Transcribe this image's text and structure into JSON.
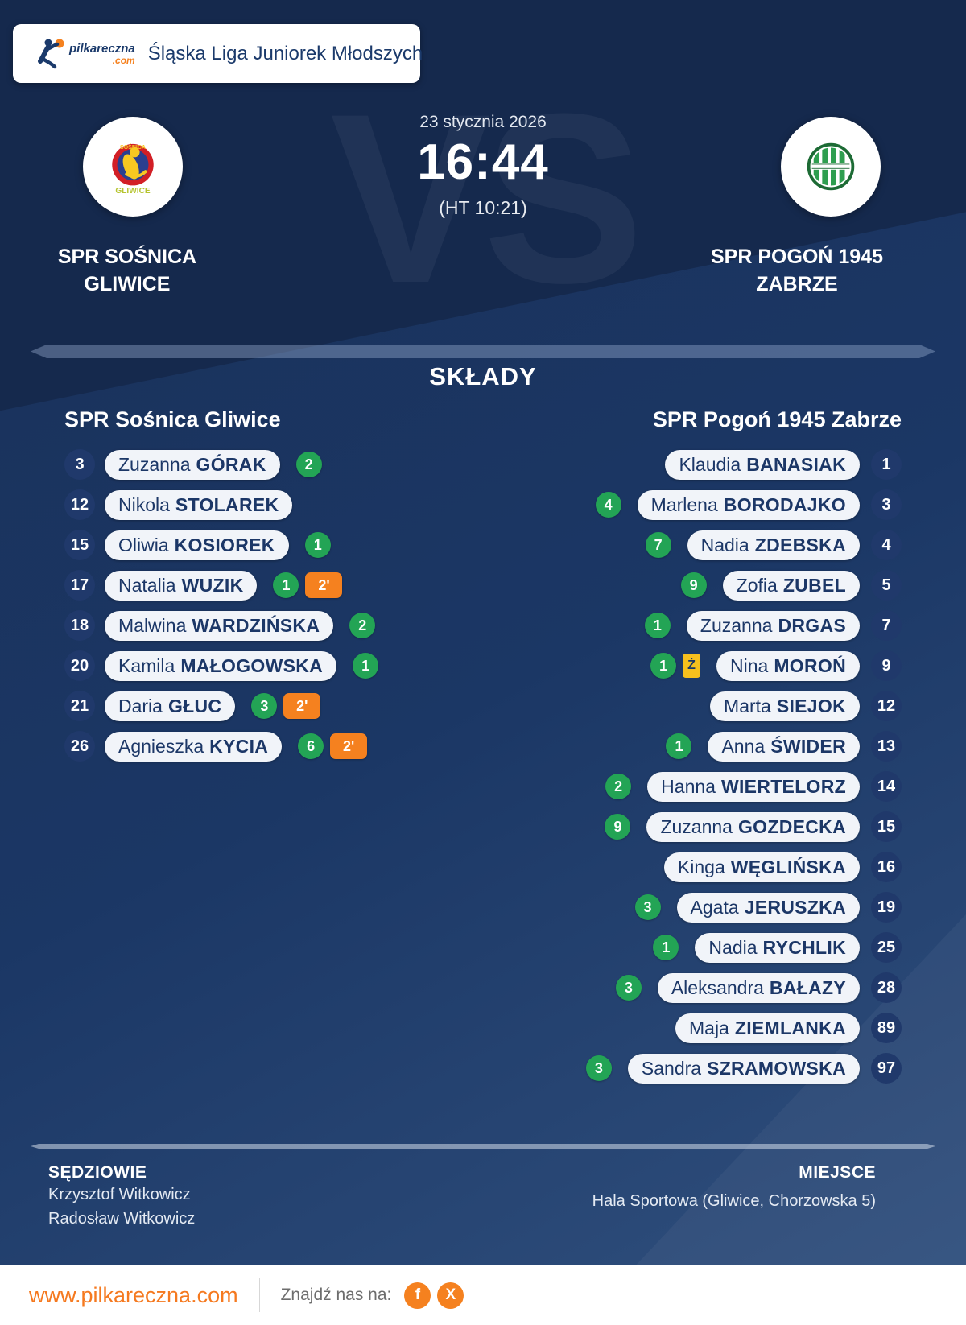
{
  "header": {
    "logo": {
      "brand": "pilkareczna",
      "tld": ".com"
    },
    "title": "Śląska Liga Juniorek Młodszych"
  },
  "match": {
    "date": "23 stycznia 2026",
    "score": "16:44",
    "halftime": "(HT 10:21)",
    "vs_watermark": "VS",
    "home": {
      "name_lines": [
        "SPR SOŚNICA",
        "GLIWICE"
      ],
      "crest_text_top": "SOŚNICA",
      "crest_text_bottom": "GLIWICE"
    },
    "away": {
      "name_lines": [
        "SPR POGOŃ 1945",
        "ZABRZE"
      ]
    }
  },
  "lineups": {
    "heading": "SKŁADY",
    "home": {
      "title": "SPR Sośnica Gliwice",
      "players": [
        {
          "number": "3",
          "first": "Zuzanna",
          "last": "GÓRAK",
          "goals": "2"
        },
        {
          "number": "12",
          "first": "Nikola",
          "last": "STOLAREK"
        },
        {
          "number": "15",
          "first": "Oliwia",
          "last": "KOSIOREK",
          "goals": "1"
        },
        {
          "number": "17",
          "first": "Natalia",
          "last": "WUZIK",
          "goals": "1",
          "penalty": "2'"
        },
        {
          "number": "18",
          "first": "Malwina",
          "last": "WARDZIŃSKA",
          "goals": "2"
        },
        {
          "number": "20",
          "first": "Kamila",
          "last": "MAŁOGOWSKA",
          "goals": "1"
        },
        {
          "number": "21",
          "first": "Daria",
          "last": "GŁUC",
          "goals": "3",
          "penalty": "2'"
        },
        {
          "number": "26",
          "first": "Agnieszka",
          "last": "KYCIA",
          "goals": "6",
          "penalty": "2'"
        }
      ]
    },
    "away": {
      "title": "SPR Pogoń 1945 Zabrze",
      "players": [
        {
          "number": "1",
          "first": "Klaudia",
          "last": "BANASIAK"
        },
        {
          "number": "3",
          "first": "Marlena",
          "last": "BORODAJKO",
          "goals": "4"
        },
        {
          "number": "4",
          "first": "Nadia",
          "last": "ZDEBSKA",
          "goals": "7"
        },
        {
          "number": "5",
          "first": "Zofia",
          "last": "ZUBEL",
          "goals": "9"
        },
        {
          "number": "7",
          "first": "Zuzanna",
          "last": "DRGAS",
          "goals": "1"
        },
        {
          "number": "9",
          "first": "Nina",
          "last": "MOROŃ",
          "goals": "1",
          "card": "Ż"
        },
        {
          "number": "12",
          "first": "Marta",
          "last": "SIEJOK"
        },
        {
          "number": "13",
          "first": "Anna",
          "last": "ŚWIDER",
          "goals": "1"
        },
        {
          "number": "14",
          "first": "Hanna",
          "last": "WIERTELORZ",
          "goals": "2"
        },
        {
          "number": "15",
          "first": "Zuzanna",
          "last": "GOZDECKA",
          "goals": "9"
        },
        {
          "number": "16",
          "first": "Kinga",
          "last": "WĘGLIŃSKA"
        },
        {
          "number": "19",
          "first": "Agata",
          "last": "JERUSZKA",
          "goals": "3"
        },
        {
          "number": "25",
          "first": "Nadia",
          "last": "RYCHLIK",
          "goals": "1"
        },
        {
          "number": "28",
          "first": "Aleksandra",
          "last": "BAŁAZY",
          "goals": "3"
        },
        {
          "number": "89",
          "first": "Maja",
          "last": "ZIEMLANKA"
        },
        {
          "number": "97",
          "first": "Sandra",
          "last": "SZRAMOWSKA",
          "goals": "3"
        }
      ]
    }
  },
  "footer": {
    "referees": {
      "label": "SĘDZIOWIE",
      "names": [
        "Krzysztof Witkowicz",
        "Radosław Witkowicz"
      ]
    },
    "venue": {
      "label": "MIEJSCE",
      "value": "Hala Sportowa (Gliwice, Chorzowska 5)"
    }
  },
  "bottom_bar": {
    "website": "www.pilkareczna.com",
    "social_label": "Znajdź nas na:",
    "facebook_glyph": "f",
    "x_glyph": "X"
  },
  "colors": {
    "navy_background": "#15294d",
    "pill_text_navy": "#1c3767",
    "goal_green": "#23a455",
    "penalty_orange": "#f5811f",
    "card_yellow": "#f7c01d",
    "accent_orange": "#f5791f"
  }
}
